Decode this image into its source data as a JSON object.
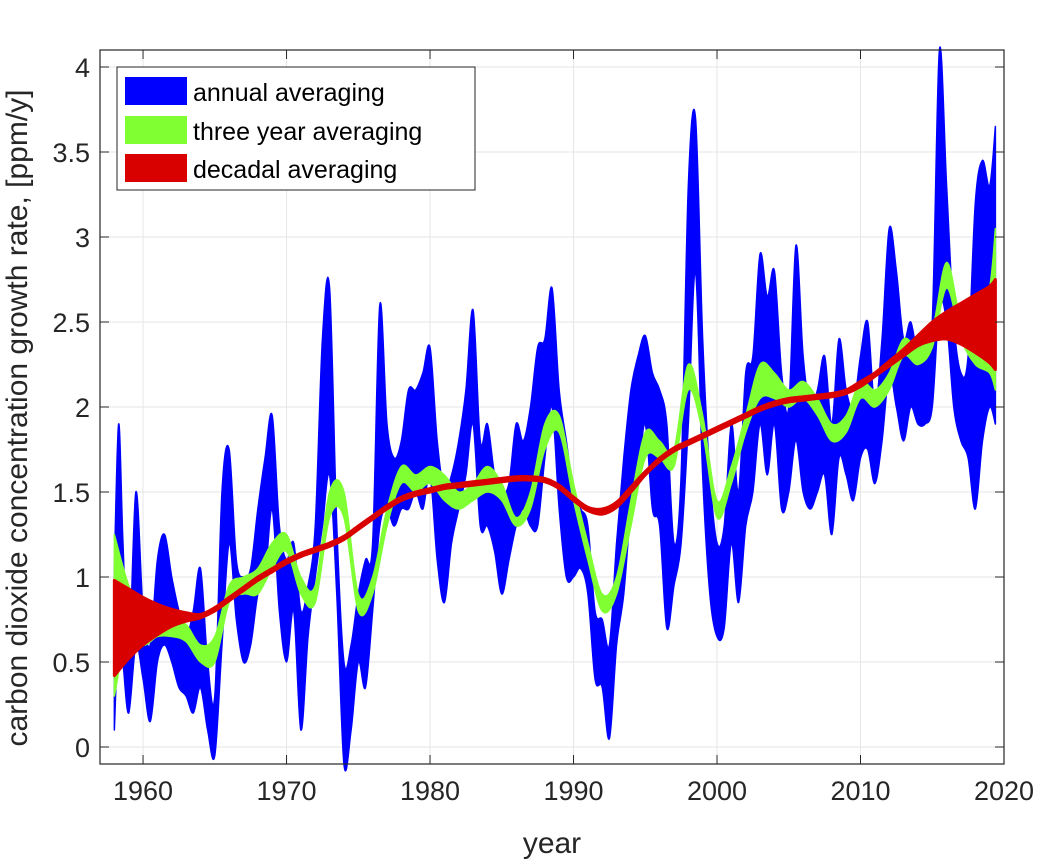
{
  "chart_data": {
    "type": "area",
    "title": "",
    "xlabel": "year",
    "ylabel": "carbon dioxide concentration growth rate, [ppm/y]",
    "xlim": [
      1957,
      2020
    ],
    "ylim": [
      -0.1,
      4.1
    ],
    "xticks": [
      1960,
      1970,
      1980,
      1990,
      2000,
      2010,
      2020
    ],
    "xtick_labels": [
      "1960",
      "1970",
      "1980",
      "1990",
      "2000",
      "2010",
      "2020"
    ],
    "yticks": [
      0,
      0.5,
      1,
      1.5,
      2,
      2.5,
      3,
      3.5,
      4
    ],
    "ytick_labels": [
      "0",
      "0.5",
      "1",
      "1.5",
      "2",
      "2.5",
      "3",
      "3.5",
      "4"
    ],
    "grid": true,
    "legend_position": "top-left",
    "series": [
      {
        "name": "annual averaging",
        "color": "#0000ff",
        "x": [
          1958.0,
          1958.3,
          1958.6,
          1959.0,
          1959.5,
          1960.0,
          1960.5,
          1961.0,
          1961.5,
          1962.0,
          1962.5,
          1963.0,
          1963.5,
          1964.0,
          1964.5,
          1965.0,
          1965.5,
          1966.0,
          1966.5,
          1967.0,
          1967.5,
          1968.0,
          1968.5,
          1969.0,
          1969.5,
          1970.0,
          1970.5,
          1971.0,
          1971.5,
          1972.0,
          1972.5,
          1973.0,
          1973.5,
          1974.0,
          1974.5,
          1975.0,
          1975.5,
          1976.0,
          1976.5,
          1977.0,
          1977.5,
          1978.0,
          1978.5,
          1979.0,
          1979.5,
          1980.0,
          1980.5,
          1981.0,
          1981.5,
          1982.0,
          1982.5,
          1983.0,
          1983.5,
          1984.0,
          1984.5,
          1985.0,
          1985.5,
          1986.0,
          1986.5,
          1987.0,
          1987.5,
          1988.0,
          1988.5,
          1989.0,
          1989.5,
          1990.0,
          1990.5,
          1991.0,
          1991.5,
          1992.0,
          1992.5,
          1993.0,
          1993.5,
          1994.0,
          1994.5,
          1995.0,
          1995.5,
          1996.0,
          1996.5,
          1997.0,
          1997.5,
          1998.0,
          1998.5,
          1999.0,
          1999.5,
          2000.0,
          2000.5,
          2001.0,
          2001.5,
          2002.0,
          2002.5,
          2003.0,
          2003.5,
          2004.0,
          2004.5,
          2005.0,
          2005.5,
          2006.0,
          2006.5,
          2007.0,
          2007.5,
          2008.0,
          2008.5,
          2009.0,
          2009.5,
          2010.0,
          2010.5,
          2011.0,
          2011.5,
          2012.0,
          2012.5,
          2013.0,
          2013.5,
          2014.0,
          2014.5,
          2015.0,
          2015.5,
          2016.0,
          2016.5,
          2017.0,
          2017.5,
          2018.0,
          2018.5,
          2019.0,
          2019.4
        ],
        "upper": [
          1.05,
          1.9,
          1.2,
          0.5,
          1.5,
          0.8,
          0.6,
          1.1,
          1.25,
          1.0,
          0.8,
          0.65,
          0.8,
          1.05,
          0.5,
          0.3,
          1.5,
          1.75,
          1.1,
          1.0,
          1.05,
          1.4,
          1.7,
          1.95,
          1.3,
          1.1,
          1.2,
          0.8,
          0.95,
          1.3,
          2.4,
          2.7,
          1.3,
          0.5,
          0.6,
          0.9,
          1.1,
          1.2,
          2.6,
          1.9,
          1.7,
          1.8,
          2.1,
          2.1,
          2.2,
          2.35,
          1.8,
          1.5,
          1.6,
          1.8,
          2.1,
          2.57,
          1.8,
          1.9,
          1.6,
          1.5,
          1.55,
          1.9,
          1.8,
          2.0,
          2.35,
          2.4,
          2.7,
          2.1,
          1.8,
          1.5,
          1.4,
          1.3,
          0.8,
          0.75,
          0.6,
          1.2,
          1.7,
          2.1,
          2.3,
          2.42,
          2.2,
          2.1,
          1.9,
          1.2,
          1.6,
          3.3,
          3.7,
          2.4,
          1.6,
          1.2,
          1.3,
          1.9,
          1.5,
          2.2,
          2.3,
          2.9,
          2.65,
          2.8,
          2.2,
          2.0,
          2.95,
          2.3,
          2.0,
          2.1,
          2.3,
          1.9,
          2.4,
          2.1,
          2.0,
          2.3,
          2.5,
          2.0,
          2.4,
          3.05,
          2.8,
          2.4,
          2.5,
          2.3,
          2.4,
          2.5,
          4.1,
          3.3,
          2.5,
          2.2,
          2.3,
          3.2,
          3.45,
          3.3,
          3.65
        ],
        "lower": [
          0.1,
          0.7,
          0.5,
          0.2,
          0.6,
          0.4,
          0.15,
          0.5,
          0.6,
          0.5,
          0.35,
          0.3,
          0.2,
          0.35,
          0.1,
          -0.05,
          0.6,
          1.2,
          0.75,
          0.5,
          0.6,
          0.9,
          1.0,
          1.4,
          0.8,
          0.5,
          0.8,
          0.1,
          0.65,
          1.0,
          1.3,
          1.6,
          0.9,
          -0.1,
          0.1,
          0.5,
          0.35,
          0.8,
          1.3,
          1.4,
          1.3,
          1.4,
          1.4,
          1.5,
          1.4,
          1.6,
          1.1,
          0.85,
          1.2,
          1.4,
          1.6,
          1.9,
          1.3,
          1.3,
          1.15,
          0.9,
          1.1,
          1.3,
          1.4,
          1.3,
          1.3,
          1.7,
          2.0,
          1.4,
          1.0,
          1.0,
          1.05,
          0.9,
          0.4,
          0.35,
          0.05,
          0.6,
          0.9,
          1.4,
          1.6,
          1.9,
          1.4,
          1.3,
          0.7,
          0.95,
          1.2,
          1.9,
          2.8,
          1.6,
          0.9,
          0.65,
          0.7,
          1.2,
          0.85,
          1.3,
          1.5,
          1.9,
          1.6,
          1.9,
          1.4,
          1.5,
          1.8,
          1.5,
          1.4,
          1.5,
          1.6,
          1.25,
          1.7,
          1.6,
          1.45,
          1.7,
          1.75,
          1.55,
          1.8,
          2.2,
          2.0,
          1.8,
          2.0,
          1.9,
          1.9,
          2.0,
          2.6,
          2.5,
          2.0,
          1.8,
          1.7,
          1.4,
          1.8,
          2.0,
          1.9
        ]
      },
      {
        "name": "three year averaging",
        "color": "#80ff33",
        "x": [
          1958.0,
          1959.0,
          1960.0,
          1961.0,
          1962.0,
          1963.0,
          1964.0,
          1965.0,
          1966.0,
          1967.0,
          1968.0,
          1969.0,
          1970.0,
          1971.0,
          1972.0,
          1973.0,
          1974.0,
          1975.0,
          1976.0,
          1977.0,
          1978.0,
          1979.0,
          1980.0,
          1981.0,
          1982.0,
          1983.0,
          1984.0,
          1985.0,
          1986.0,
          1987.0,
          1988.0,
          1989.0,
          1990.0,
          1991.0,
          1992.0,
          1993.0,
          1994.0,
          1995.0,
          1996.0,
          1997.0,
          1998.0,
          1999.0,
          2000.0,
          2001.0,
          2002.0,
          2003.0,
          2004.0,
          2005.0,
          2006.0,
          2007.0,
          2008.0,
          2009.0,
          2010.0,
          2011.0,
          2012.0,
          2013.0,
          2014.0,
          2015.0,
          2016.0,
          2017.0,
          2018.0,
          2019.0,
          2019.4
        ],
        "upper": [
          1.25,
          0.95,
          0.8,
          0.75,
          0.75,
          0.72,
          0.6,
          0.65,
          0.95,
          1.0,
          1.05,
          1.2,
          1.25,
          1.0,
          0.95,
          1.5,
          1.5,
          0.9,
          1.0,
          1.4,
          1.65,
          1.6,
          1.65,
          1.6,
          1.5,
          1.55,
          1.65,
          1.55,
          1.35,
          1.5,
          1.9,
          1.95,
          1.55,
          1.2,
          0.9,
          1.0,
          1.45,
          1.85,
          1.8,
          1.75,
          2.25,
          1.95,
          1.45,
          1.65,
          1.95,
          2.25,
          2.2,
          2.1,
          2.15,
          2.05,
          1.9,
          1.95,
          2.15,
          2.1,
          2.2,
          2.4,
          2.35,
          2.45,
          2.85,
          2.5,
          2.35,
          2.7,
          3.05
        ],
        "lower": [
          0.3,
          0.7,
          0.6,
          0.65,
          0.65,
          0.62,
          0.5,
          0.5,
          0.85,
          0.9,
          0.9,
          1.05,
          1.15,
          0.9,
          0.85,
          1.35,
          1.35,
          0.8,
          0.9,
          1.3,
          1.55,
          1.5,
          1.55,
          1.45,
          1.4,
          1.45,
          1.5,
          1.45,
          1.3,
          1.4,
          1.75,
          1.85,
          1.45,
          1.1,
          0.8,
          0.9,
          1.3,
          1.7,
          1.7,
          1.65,
          2.1,
          1.85,
          1.35,
          1.55,
          1.85,
          2.05,
          2.05,
          2.0,
          2.05,
          1.95,
          1.8,
          1.85,
          2.05,
          2.0,
          2.1,
          2.3,
          2.25,
          2.35,
          2.7,
          2.4,
          2.25,
          2.2,
          2.1
        ]
      },
      {
        "name": "decadal averaging",
        "color": "#d90000",
        "x": [
          1958.0,
          1959.0,
          1960.0,
          1961.0,
          1962.0,
          1963.0,
          1964.0,
          1965.0,
          1966.0,
          1967.0,
          1968.0,
          1969.0,
          1970.0,
          1971.0,
          1972.0,
          1973.0,
          1974.0,
          1975.0,
          1976.0,
          1977.0,
          1978.0,
          1979.0,
          1980.0,
          1981.0,
          1982.0,
          1983.0,
          1984.0,
          1985.0,
          1986.0,
          1987.0,
          1988.0,
          1989.0,
          1990.0,
          1991.0,
          1992.0,
          1993.0,
          1994.0,
          1995.0,
          1996.0,
          1997.0,
          1998.0,
          1999.0,
          2000.0,
          2001.0,
          2002.0,
          2003.0,
          2004.0,
          2005.0,
          2006.0,
          2007.0,
          2008.0,
          2009.0,
          2010.0,
          2011.0,
          2012.0,
          2013.0,
          2014.0,
          2015.0,
          2016.0,
          2017.0,
          2018.0,
          2019.0,
          2019.4
        ],
        "upper": [
          0.98,
          0.93,
          0.88,
          0.84,
          0.81,
          0.79,
          0.78,
          0.82,
          0.88,
          0.94,
          1.0,
          1.05,
          1.1,
          1.14,
          1.17,
          1.2,
          1.24,
          1.3,
          1.36,
          1.42,
          1.47,
          1.5,
          1.52,
          1.54,
          1.55,
          1.56,
          1.57,
          1.58,
          1.59,
          1.59,
          1.58,
          1.54,
          1.47,
          1.41,
          1.4,
          1.44,
          1.53,
          1.62,
          1.7,
          1.76,
          1.8,
          1.84,
          1.88,
          1.92,
          1.96,
          2.0,
          2.03,
          2.05,
          2.06,
          2.07,
          2.08,
          2.1,
          2.15,
          2.2,
          2.27,
          2.34,
          2.42,
          2.5,
          2.56,
          2.61,
          2.66,
          2.71,
          2.75
        ],
        "lower": [
          0.42,
          0.52,
          0.6,
          0.66,
          0.71,
          0.74,
          0.76,
          0.8,
          0.86,
          0.92,
          0.98,
          1.03,
          1.08,
          1.12,
          1.15,
          1.18,
          1.22,
          1.28,
          1.34,
          1.4,
          1.45,
          1.48,
          1.5,
          1.52,
          1.53,
          1.54,
          1.55,
          1.56,
          1.57,
          1.57,
          1.56,
          1.52,
          1.45,
          1.39,
          1.37,
          1.41,
          1.5,
          1.6,
          1.68,
          1.74,
          1.78,
          1.82,
          1.86,
          1.9,
          1.94,
          1.98,
          2.01,
          2.03,
          2.04,
          2.05,
          2.06,
          2.08,
          2.12,
          2.18,
          2.24,
          2.3,
          2.36,
          2.39,
          2.4,
          2.37,
          2.32,
          2.26,
          2.22
        ]
      }
    ]
  }
}
